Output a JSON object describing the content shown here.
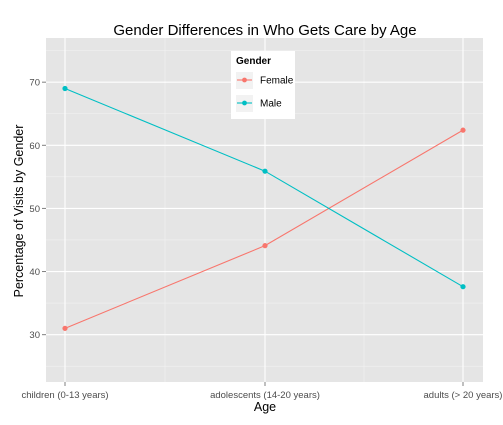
{
  "chart_data": {
    "type": "line",
    "title": "Gender Differences in Who Gets Care by Age",
    "xlabel": "Age",
    "ylabel": "Percentage of Visits by Gender",
    "categories": [
      "children (0-13 years)",
      "adolescents (14-20 years)",
      "adults (> 20 years)"
    ],
    "ylim": [
      22.5,
      77
    ],
    "yticks": [
      30,
      40,
      50,
      60,
      70
    ],
    "grid": true,
    "legend": {
      "title": "Gender",
      "position": "top-center-inside"
    },
    "series": [
      {
        "name": "Female",
        "color": "#F8766D",
        "values": [
          31.0,
          44.1,
          62.4
        ]
      },
      {
        "name": "Male",
        "color": "#00BFC4",
        "values": [
          69.0,
          55.9,
          37.6
        ]
      }
    ]
  },
  "colors": {
    "panel_background": "#E5E5E5",
    "grid_major": "#FFFFFF",
    "grid_minor": "#F2F2F2"
  }
}
